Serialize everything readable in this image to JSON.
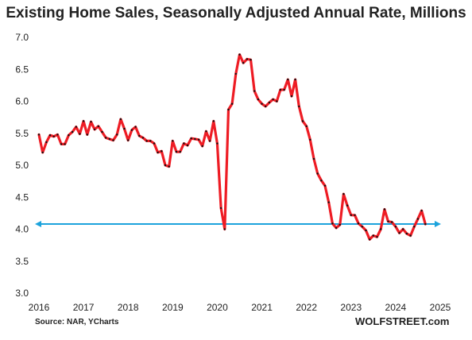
{
  "chart_data": {
    "type": "line",
    "title": "Existing Home Sales, Seasonally Adjusted Annual Rate, Millions",
    "source": "Source: NAR, YCharts",
    "brand": "WOLFSTREET.com",
    "ylim": [
      3.0,
      7.0
    ],
    "xlim": [
      2016,
      2025
    ],
    "y_ticks": [
      "3.0",
      "3.5",
      "4.0",
      "4.5",
      "5.0",
      "5.5",
      "6.0",
      "6.5",
      "7.0"
    ],
    "x_ticks": [
      "2016",
      "2017",
      "2018",
      "2019",
      "2020",
      "2021",
      "2022",
      "2023",
      "2024",
      "2025"
    ],
    "grid": false,
    "series_color": "#ee1c24",
    "marker_color": "#111111",
    "reference_line": {
      "value": 4.08,
      "color": "#1ca3dc"
    },
    "series": [
      {
        "values": [
          5.48,
          5.2,
          5.36,
          5.47,
          5.45,
          5.48,
          5.33,
          5.33,
          5.47,
          5.52,
          5.6,
          5.49,
          5.69,
          5.48,
          5.68,
          5.56,
          5.61,
          5.52,
          5.43,
          5.41,
          5.39,
          5.48,
          5.72,
          5.57,
          5.39,
          5.55,
          5.6,
          5.46,
          5.43,
          5.38,
          5.38,
          5.34,
          5.2,
          5.22,
          5.0,
          4.98,
          5.38,
          5.21,
          5.21,
          5.34,
          5.31,
          5.42,
          5.41,
          5.4,
          5.3,
          5.53,
          5.38,
          5.69,
          5.34,
          4.33,
          4.0,
          5.87,
          5.96,
          6.43,
          6.73,
          6.6,
          6.66,
          6.65,
          6.16,
          6.03,
          5.96,
          5.92,
          5.98,
          6.03,
          6.0,
          6.18,
          6.18,
          6.34,
          6.08,
          6.34,
          5.92,
          5.69,
          5.61,
          5.4,
          5.1,
          4.87,
          4.76,
          4.68,
          4.42,
          4.09,
          4.02,
          4.07,
          4.55,
          4.37,
          4.22,
          4.22,
          4.09,
          4.04,
          3.98,
          3.84,
          3.9,
          3.88,
          4.0,
          4.31,
          4.12,
          4.11,
          4.04,
          3.94,
          4.0,
          3.93,
          3.9,
          4.04,
          4.16,
          4.29,
          4.08
        ]
      }
    ]
  }
}
